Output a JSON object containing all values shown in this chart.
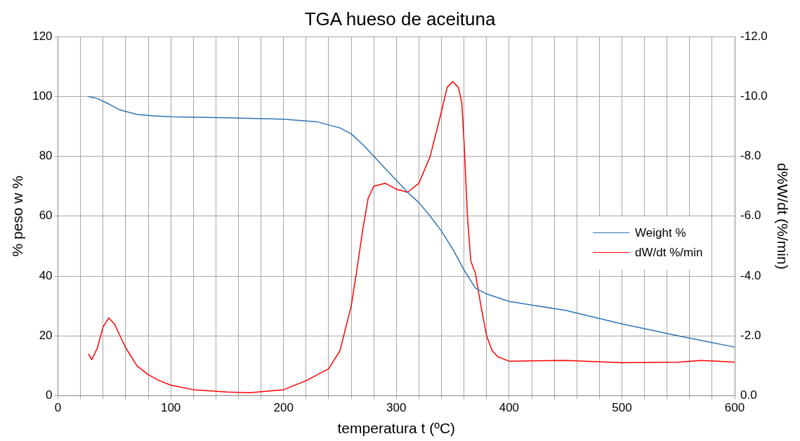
{
  "chart_data": {
    "type": "line",
    "title": "TGA hueso de aceituna",
    "xlabel": "temperatura t (ºC)",
    "ylabel": "% peso w %",
    "y2label": "d%W/dt (%/min)",
    "xlim": [
      0,
      600
    ],
    "xticks": [
      0,
      {
        "value": 20,
        "label": null
      },
      {
        "value": 40,
        "label": null
      },
      {
        "value": 60,
        "label": null
      },
      {
        "value": 80,
        "label": null
      },
      100,
      {
        "value": 120,
        "label": null
      },
      {
        "value": 140,
        "label": null
      },
      {
        "value": 160,
        "label": null
      },
      {
        "value": 180,
        "label": null
      },
      200,
      {
        "value": 220,
        "label": null
      },
      {
        "value": 240,
        "label": null
      },
      {
        "value": 260,
        "label": null
      },
      {
        "value": 280,
        "label": null
      },
      300,
      {
        "value": 320,
        "label": null
      },
      {
        "value": 340,
        "label": null
      },
      {
        "value": 360,
        "label": null
      },
      {
        "value": 380,
        "label": null
      },
      400,
      {
        "value": 420,
        "label": null
      },
      {
        "value": 440,
        "label": null
      },
      {
        "value": 460,
        "label": null
      },
      {
        "value": 480,
        "label": null
      },
      500,
      {
        "value": 520,
        "label": null
      },
      {
        "value": 540,
        "label": null
      },
      {
        "value": 560,
        "label": null
      },
      {
        "value": 580,
        "label": null
      },
      600
    ],
    "ylim": [
      0,
      120
    ],
    "yticks": [
      0,
      20,
      40,
      60,
      80,
      100,
      120
    ],
    "y2lim": [
      0,
      -12
    ],
    "y2ticks": [
      {
        "value": 0,
        "label": "0.0"
      },
      {
        "value": -2,
        "label": "-2.0"
      },
      {
        "value": -4,
        "label": "-4.0"
      },
      {
        "value": -6,
        "label": "-6.0"
      },
      {
        "value": -8,
        "label": "-8.0"
      },
      {
        "value": -10,
        "label": "-10.0"
      },
      {
        "value": -12,
        "label": "-12.0"
      }
    ],
    "grid": true,
    "legend": "right",
    "marker": "none",
    "line_style": "solid",
    "series": [
      {
        "name": "Weight %",
        "color": "#2e75b6",
        "x": [
          27,
          35,
          45,
          55,
          70,
          85,
          100,
          150,
          200,
          230,
          250,
          260,
          270,
          280,
          290,
          300,
          310,
          320,
          330,
          340,
          350,
          360,
          370,
          380,
          400,
          450,
          500,
          550,
          600
        ],
        "values": [
          100,
          99.3,
          97.5,
          95.5,
          94,
          93.5,
          93.2,
          92.9,
          92.4,
          91.5,
          89.5,
          87.5,
          84,
          80,
          76,
          72,
          68,
          64.5,
          60,
          55,
          49,
          42,
          36,
          34,
          31.5,
          28.5,
          24,
          20,
          16.2
        ]
      },
      {
        "name": "dW/dt %/min",
        "color": "#ff0000",
        "axis": "y2",
        "x": [
          27,
          30,
          35,
          40,
          45,
          50,
          55,
          60,
          70,
          80,
          90,
          100,
          120,
          150,
          170,
          200,
          220,
          240,
          250,
          260,
          265,
          270,
          275,
          280,
          290,
          300,
          310,
          320,
          330,
          340,
          345,
          350,
          355,
          358,
          360,
          363,
          366,
          370,
          375,
          380,
          385,
          390,
          400,
          450,
          500,
          550,
          570,
          600
        ],
        "values": [
          -1.4,
          -1.2,
          -1.6,
          -2.3,
          -2.6,
          -2.4,
          -2.0,
          -1.6,
          -1.0,
          -0.7,
          -0.5,
          -0.35,
          -0.2,
          -0.12,
          -0.1,
          -0.2,
          -0.5,
          -0.9,
          -1.5,
          -3.0,
          -4.2,
          -5.5,
          -6.6,
          -7.0,
          -7.1,
          -6.9,
          -6.8,
          -7.1,
          -8.0,
          -9.5,
          -10.3,
          -10.5,
          -10.3,
          -9.8,
          -8.5,
          -6.0,
          -4.5,
          -4.1,
          -3.0,
          -2.0,
          -1.5,
          -1.3,
          -1.15,
          -1.18,
          -1.1,
          -1.12,
          -1.18,
          -1.12
        ]
      }
    ]
  }
}
